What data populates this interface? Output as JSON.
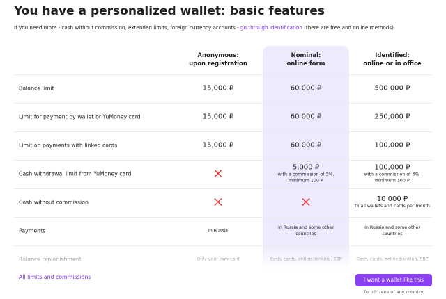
{
  "header": {
    "title": "You have a personalized wallet: basic features",
    "subtitle_before": "If you need more - cash without commission, extended limits, foreign currency accounts - ",
    "subtitle_link": "go through identification",
    "subtitle_after": " (there are free and online methods)."
  },
  "table": {
    "columns": [
      [
        "Anonymous:",
        "upon registration"
      ],
      [
        "Nominal:",
        "online form"
      ],
      [
        "Identified:",
        "online or in office"
      ]
    ],
    "rows": [
      {
        "label": "Balance limit",
        "cells": [
          {
            "value": "15,000 ₽"
          },
          {
            "value": "60 000 ₽"
          },
          {
            "value": "500 000 ₽"
          }
        ]
      },
      {
        "label": "Limit for payment by wallet or YuMoney card",
        "cells": [
          {
            "value": "15,000 ₽"
          },
          {
            "value": "60 000 ₽"
          },
          {
            "value": "250,000 ₽"
          }
        ]
      },
      {
        "label": "Limit on payments with linked cards",
        "cells": [
          {
            "value": "15,000 ₽"
          },
          {
            "value": "60 000 ₽"
          },
          {
            "value": "100,000 ₽"
          }
        ]
      },
      {
        "label": "Cash withdrawal limit from YuMoney card",
        "cells": [
          null,
          {
            "value": "5,000 ₽",
            "note": "with a commission of 3%, minimum 100 ₽"
          },
          {
            "value": "100,000 ₽",
            "note": "with a commission of 3%, minimum 100 ₽"
          }
        ]
      },
      {
        "label": "Cash without commission",
        "cells": [
          null,
          null,
          {
            "value": "10 000 ₽",
            "note": "to all wallets and cards per month"
          }
        ]
      },
      {
        "label": "Payments",
        "cells": [
          {
            "note": "In Russia"
          },
          {
            "note": "In Russia and some other countries"
          },
          {
            "note": "In Russia and some other countries"
          }
        ]
      },
      {
        "label": "Balance replenishment",
        "cells": [
          {
            "note": "Only your own card"
          },
          {
            "note": "Cash, cards, online banking, SBP"
          },
          {
            "note": "Cash, cards, online banking, SBP"
          }
        ]
      }
    ]
  },
  "footer": {
    "link": "All limits and commissions",
    "button": "I want a wallet like this",
    "button_note": "for citizens of any country"
  }
}
